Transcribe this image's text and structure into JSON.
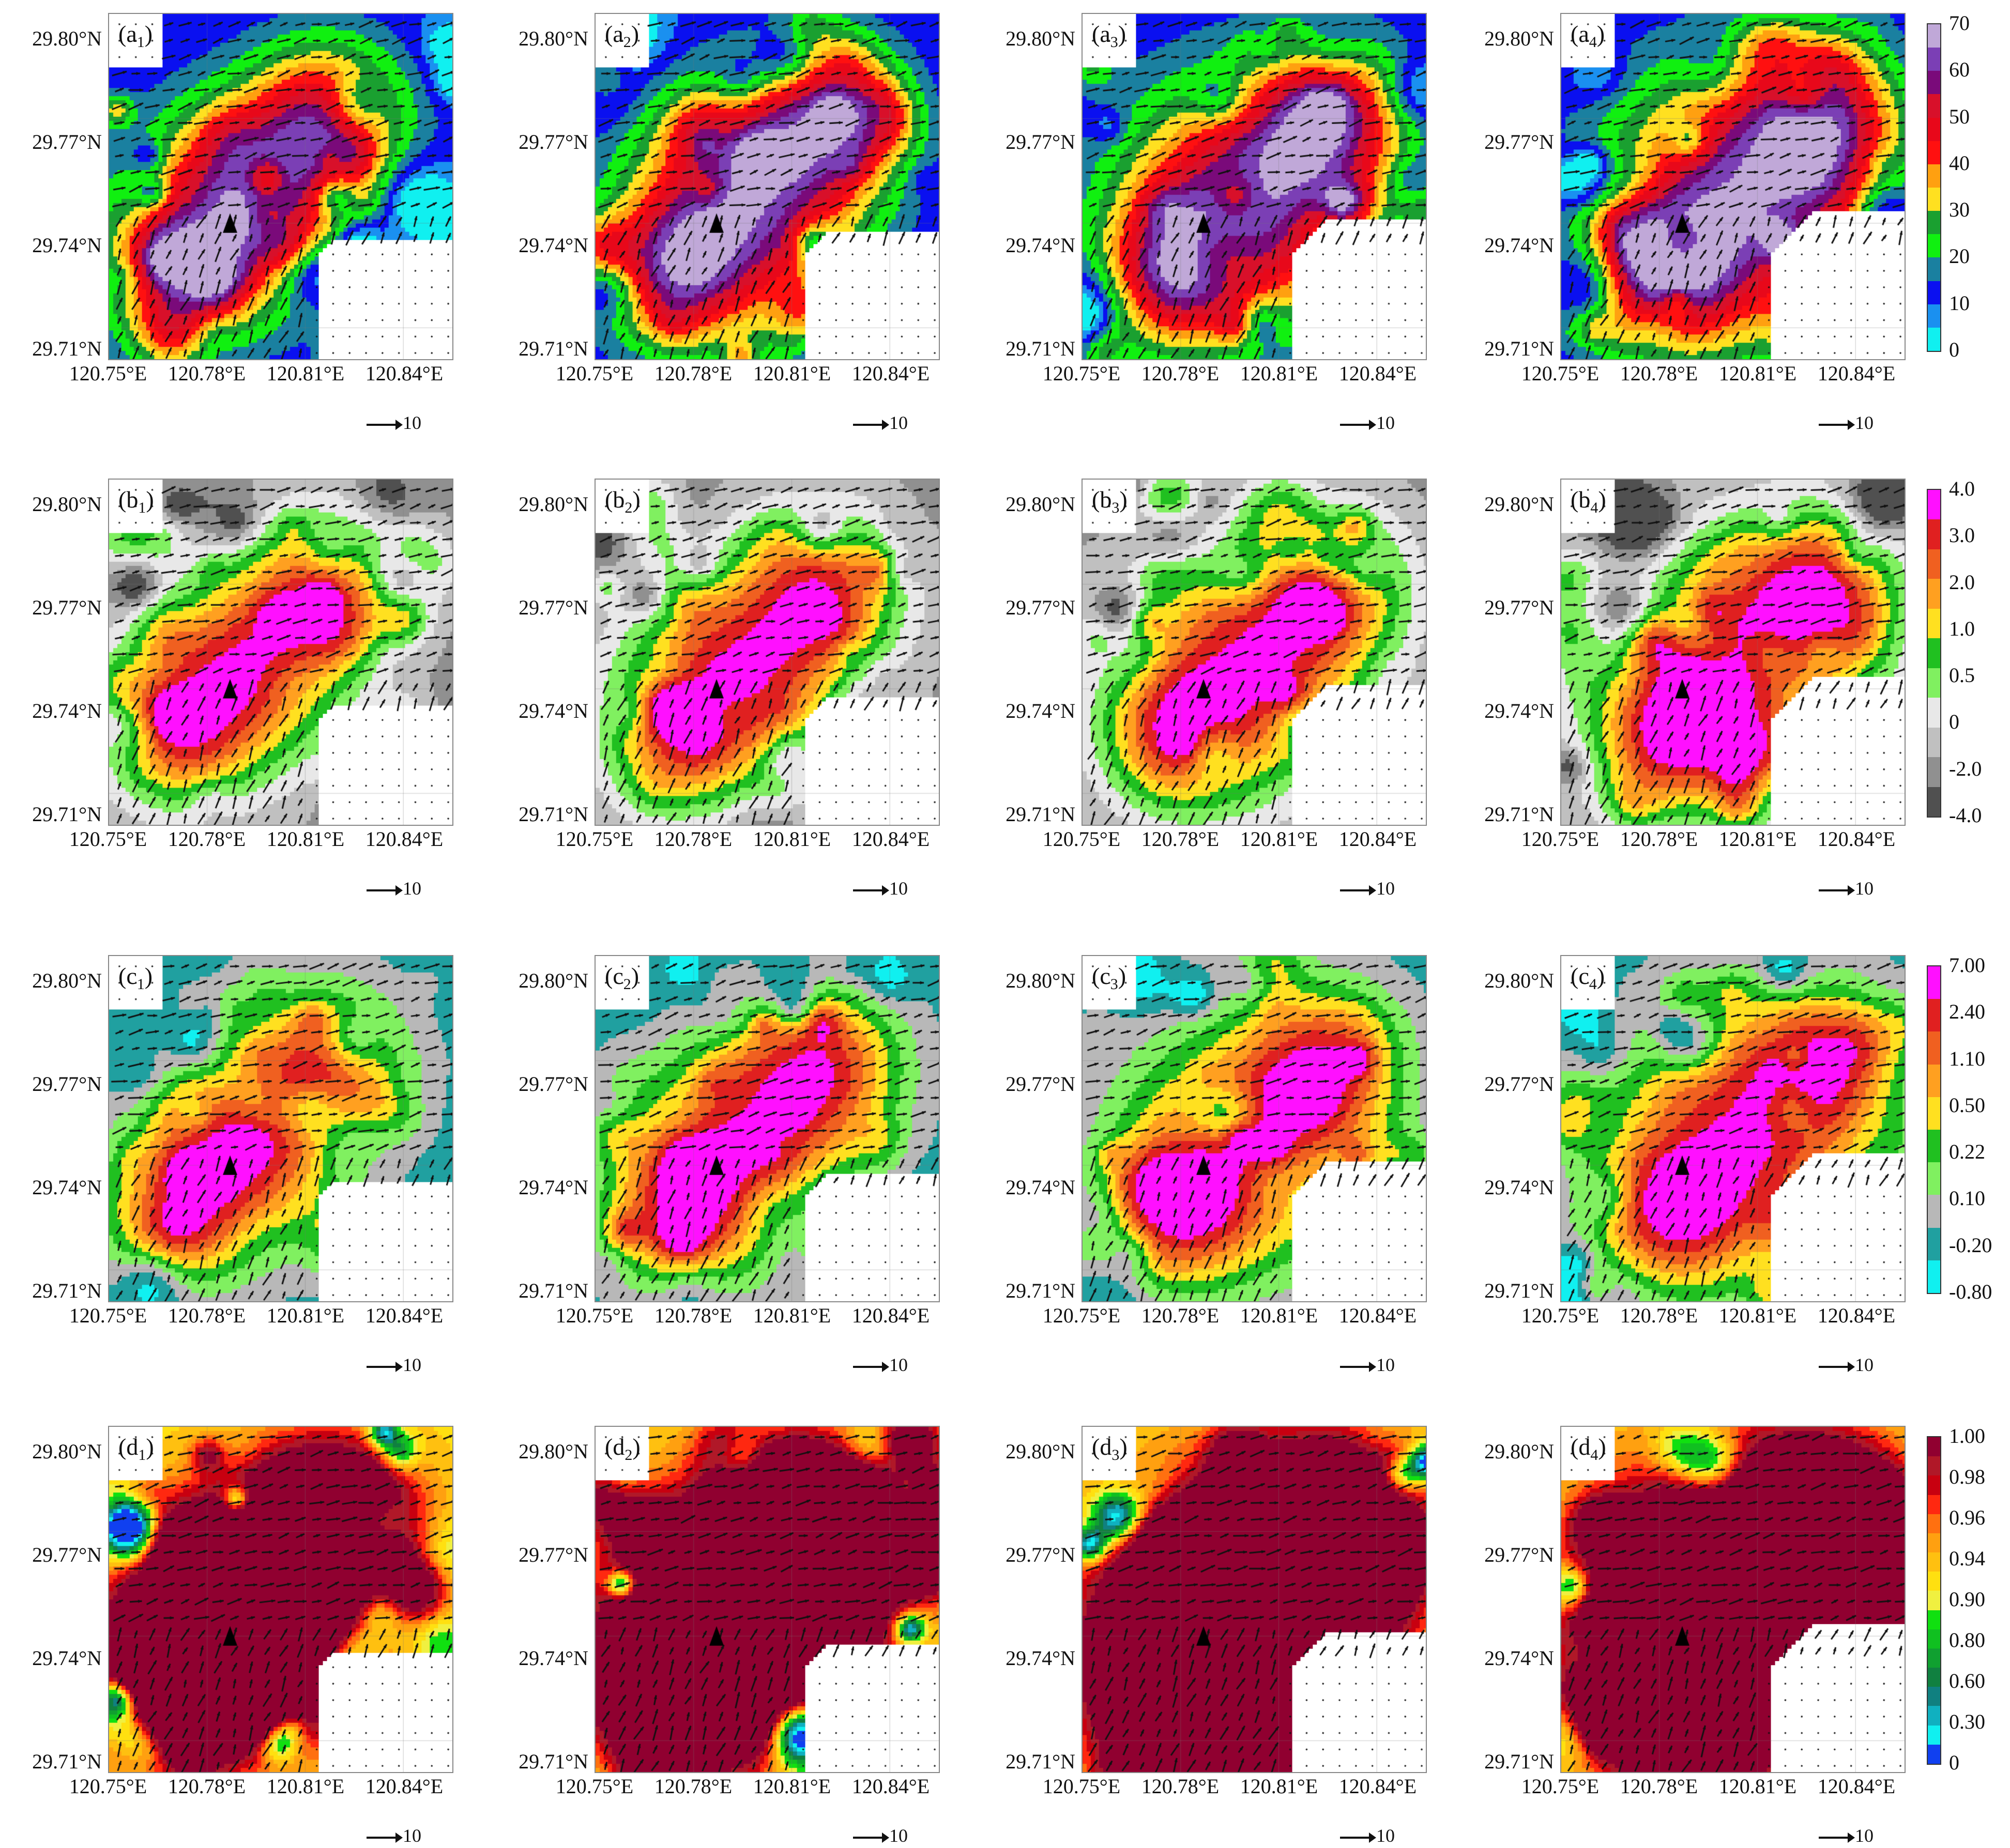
{
  "chart_data": {
    "type": "heatmap",
    "x_ticks": [
      "120.75°E",
      "120.78°E",
      "120.81°E",
      "120.84°E"
    ],
    "y_ticks": [
      "29.80°N",
      "29.77°N",
      "29.74°N",
      "29.71°N"
    ],
    "xlim": [
      120.75,
      120.855
    ],
    "ylim": [
      29.71,
      29.81
    ],
    "station_marker": {
      "lon": 120.787,
      "lat": 29.749
    },
    "vector_reference": "10",
    "rows": [
      {
        "letter": "a",
        "colorbar": {
          "ticks": [
            "70",
            "60",
            "50",
            "40",
            "30",
            "20",
            "10",
            "0"
          ],
          "colors": [
            "#c0a8d8",
            "#7b3fb5",
            "#7a0a7a",
            "#d8102a",
            "#e8081a",
            "#ff1010",
            "#ffa010",
            "#ffe020",
            "#1aa030",
            "#10f010",
            "#1a80a0",
            "#0a10f0",
            "#1a90f0",
            "#10f0f0"
          ]
        }
      },
      {
        "letter": "b",
        "colorbar": {
          "ticks": [
            "4.0",
            "3.0",
            "2.0",
            "1.0",
            "0.5",
            "0",
            "-2.0",
            "-4.0"
          ],
          "colors": [
            "#ff10ff",
            "#e02020",
            "#f06020",
            "#ffa020",
            "#ffe020",
            "#20c020",
            "#80f060",
            "#e8e8e8",
            "#c0c0c0",
            "#909090",
            "#505050"
          ]
        }
      },
      {
        "letter": "c",
        "colorbar": {
          "ticks": [
            "7.00",
            "2.40",
            "1.10",
            "0.50",
            "0.22",
            "0.10",
            "-0.20",
            "-0.80"
          ],
          "colors": [
            "#ff10ff",
            "#e02020",
            "#f06020",
            "#ffa020",
            "#ffe020",
            "#20c020",
            "#80f060",
            "#b8b8b8",
            "#20a0a0",
            "#10f0f0"
          ]
        }
      },
      {
        "letter": "d",
        "colorbar": {
          "ticks": [
            "1.00",
            "0.98",
            "0.96",
            "0.94",
            "0.90",
            "0.80",
            "0.60",
            "0.30",
            "0"
          ],
          "colors": [
            "#900030",
            "#b01828",
            "#c80010",
            "#ff2810",
            "#ff7010",
            "#ffa010",
            "#ffc010",
            "#ffe010",
            "#f0f040",
            "#10e010",
            "#10c020",
            "#10a030",
            "#108040",
            "#108080",
            "#10b0c0",
            "#10f0f0",
            "#1040f0"
          ]
        }
      }
    ],
    "panels": [
      {
        "id": "a1",
        "letter": "a",
        "sub": "1"
      },
      {
        "id": "a2",
        "letter": "a",
        "sub": "2"
      },
      {
        "id": "a3",
        "letter": "a",
        "sub": "3"
      },
      {
        "id": "a4",
        "letter": "a",
        "sub": "4"
      },
      {
        "id": "b1",
        "letter": "b",
        "sub": "1"
      },
      {
        "id": "b2",
        "letter": "b",
        "sub": "2"
      },
      {
        "id": "b3",
        "letter": "b",
        "sub": "3"
      },
      {
        "id": "b4",
        "letter": "b",
        "sub": "4"
      },
      {
        "id": "c1",
        "letter": "c",
        "sub": "1"
      },
      {
        "id": "c2",
        "letter": "c",
        "sub": "2"
      },
      {
        "id": "c3",
        "letter": "c",
        "sub": "3"
      },
      {
        "id": "c4",
        "letter": "c",
        "sub": "4"
      },
      {
        "id": "d1",
        "letter": "d",
        "sub": "1"
      },
      {
        "id": "d2",
        "letter": "d",
        "sub": "2"
      },
      {
        "id": "d3",
        "letter": "d",
        "sub": "3"
      },
      {
        "id": "d4",
        "letter": "d",
        "sub": "4"
      }
    ]
  }
}
